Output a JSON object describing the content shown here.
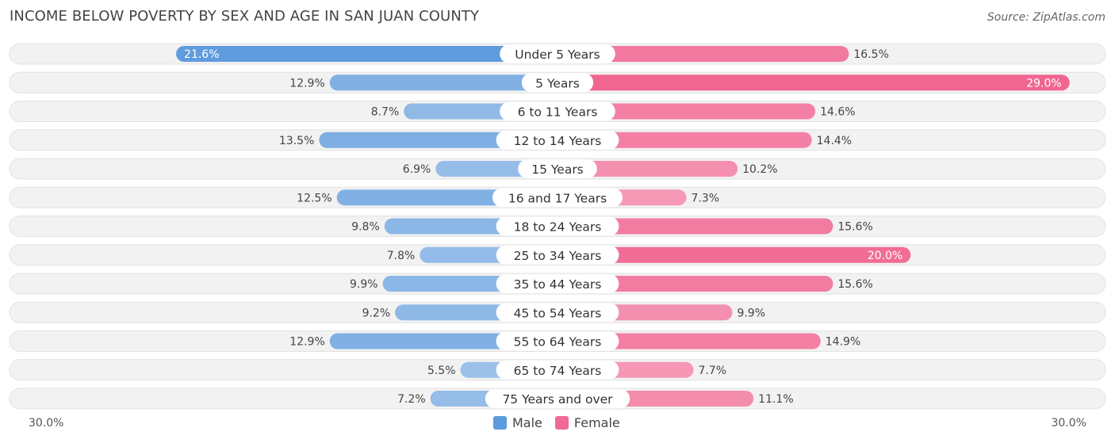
{
  "header": {
    "title": "INCOME BELOW POVERTY BY SEX AND AGE IN SAN JUAN COUNTY",
    "source": "Source: ZipAtlas.com"
  },
  "axis": {
    "left_label": "30.0%",
    "right_label": "30.0%"
  },
  "legend": {
    "male_label": "Male",
    "female_label": "Female",
    "male_color": "#5b9bde",
    "female_color": "#f06a95"
  },
  "chart_data": {
    "type": "bar",
    "orientation": "horizontal-diverging",
    "title": "INCOME BELOW POVERTY BY SEX AND AGE IN SAN JUAN COUNTY",
    "xlim": [
      -30,
      30
    ],
    "unit": "%",
    "categories": [
      "Under 5 Years",
      "5 Years",
      "6 to 11 Years",
      "12 to 14 Years",
      "15 Years",
      "16 and 17 Years",
      "18 to 24 Years",
      "25 to 34 Years",
      "35 to 44 Years",
      "45 to 54 Years",
      "55 to 64 Years",
      "65 to 74 Years",
      "75 Years and over"
    ],
    "series": [
      {
        "name": "Male",
        "values": [
          21.6,
          12.9,
          8.7,
          13.5,
          6.9,
          12.5,
          9.8,
          7.8,
          9.9,
          9.2,
          12.9,
          5.5,
          7.2
        ]
      },
      {
        "name": "Female",
        "values": [
          16.5,
          29.0,
          14.6,
          14.4,
          10.2,
          7.3,
          15.6,
          20.0,
          15.6,
          9.9,
          14.9,
          7.7,
          11.1
        ]
      }
    ],
    "value_labels": {
      "Male": [
        "21.6%",
        "12.9%",
        "8.7%",
        "13.5%",
        "6.9%",
        "12.5%",
        "9.8%",
        "7.8%",
        "9.9%",
        "9.2%",
        "12.9%",
        "5.5%",
        "7.2%"
      ],
      "Female": [
        "16.5%",
        "29.0%",
        "14.6%",
        "14.4%",
        "10.2%",
        "7.3%",
        "15.6%",
        "20.0%",
        "15.6%",
        "9.9%",
        "14.9%",
        "7.7%",
        "11.1%"
      ]
    }
  }
}
